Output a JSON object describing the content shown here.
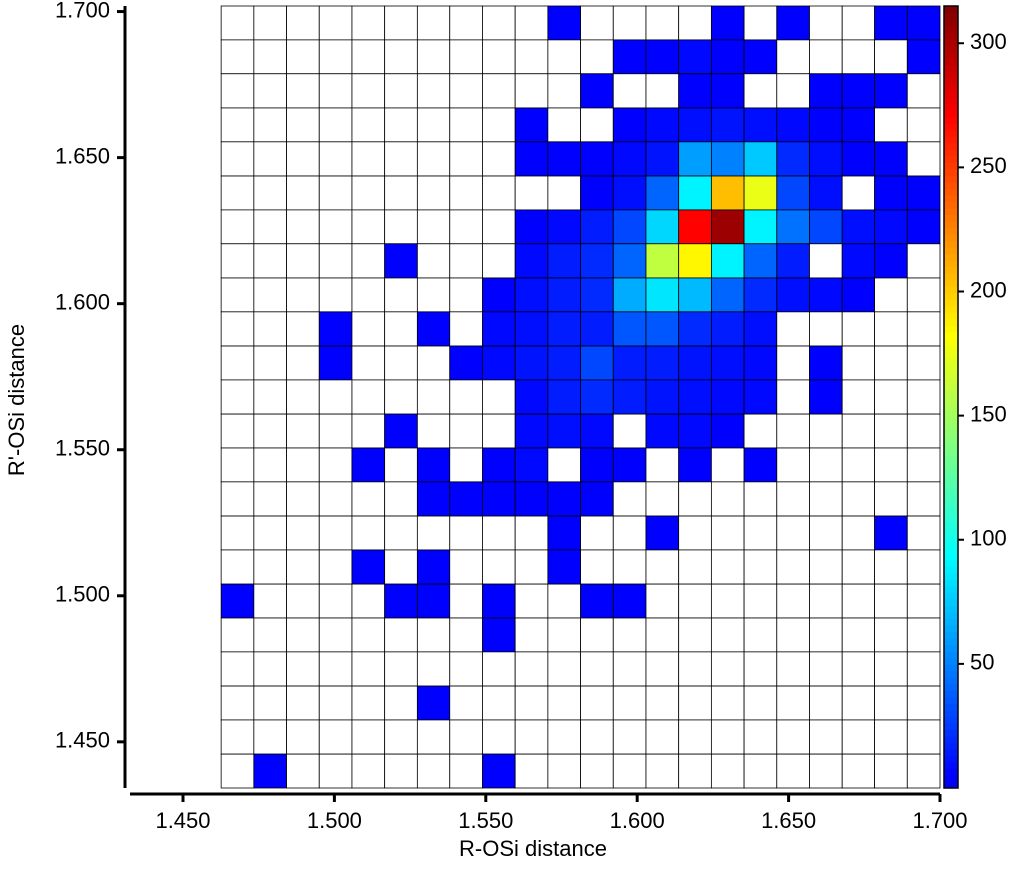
{
  "chart_data": {
    "type": "heatmap",
    "x_label": "R-OSi distance",
    "y_label": "R'-OSi distance",
    "xlim": [
      1.4325,
      1.7
    ],
    "ylim": [
      1.4342,
      1.7019
    ],
    "xticks": [
      {
        "value": 1.45,
        "label": "1.450"
      },
      {
        "value": 1.5,
        "label": "1.500"
      },
      {
        "value": 1.55,
        "label": "1.550"
      },
      {
        "value": 1.6,
        "label": "1.600"
      },
      {
        "value": 1.65,
        "label": "1.650"
      },
      {
        "value": 1.7,
        "label": "1.700"
      }
    ],
    "yticks": [
      {
        "value": 1.45,
        "label": "1.450"
      },
      {
        "value": 1.5,
        "label": "1.500"
      },
      {
        "value": 1.55,
        "label": "1.550"
      },
      {
        "value": 1.6,
        "label": "1.600"
      },
      {
        "value": 1.65,
        "label": "1.650"
      },
      {
        "value": 1.7,
        "label": "1.700"
      }
    ],
    "x_edges": [
      1.4626,
      1.4734,
      1.4842,
      1.495,
      1.5058,
      1.5166,
      1.5274,
      1.5381,
      1.5489,
      1.5597,
      1.5705,
      1.5813,
      1.5921,
      1.6029,
      1.6137,
      1.6245,
      1.6353,
      1.6461,
      1.6569,
      1.6677,
      1.6784,
      1.6892,
      1.7
    ],
    "y_edges": [
      1.7019,
      1.6903,
      1.6787,
      1.667,
      1.6554,
      1.6437,
      1.6321,
      1.6205,
      1.6088,
      1.5972,
      1.5855,
      1.5739,
      1.5622,
      1.5506,
      1.539,
      1.5273,
      1.5157,
      1.504,
      1.4924,
      1.4808,
      1.4691,
      1.4575,
      1.4458,
      1.4342
    ],
    "values": [
      [
        0,
        0,
        0,
        0,
        0,
        0,
        0,
        0,
        0,
        0,
        5,
        0,
        0,
        0,
        0,
        5,
        0,
        5,
        0,
        0,
        5,
        5
      ],
      [
        0,
        0,
        0,
        0,
        0,
        0,
        0,
        0,
        0,
        0,
        0,
        0,
        5,
        5,
        8,
        5,
        5,
        0,
        0,
        0,
        0,
        5
      ],
      [
        0,
        0,
        0,
        0,
        0,
        0,
        0,
        0,
        0,
        0,
        0,
        5,
        0,
        0,
        5,
        5,
        0,
        0,
        5,
        5,
        5,
        0
      ],
      [
        0,
        0,
        0,
        0,
        0,
        0,
        0,
        0,
        0,
        5,
        0,
        0,
        5,
        8,
        10,
        12,
        10,
        8,
        5,
        5,
        0,
        0
      ],
      [
        0,
        0,
        0,
        0,
        0,
        0,
        0,
        0,
        0,
        5,
        5,
        5,
        8,
        12,
        60,
        50,
        75,
        20,
        10,
        5,
        5,
        0
      ],
      [
        0,
        0,
        0,
        0,
        0,
        0,
        0,
        0,
        0,
        0,
        0,
        5,
        10,
        40,
        90,
        205,
        175,
        30,
        10,
        0,
        5,
        5
      ],
      [
        0,
        0,
        0,
        0,
        0,
        0,
        0,
        0,
        0,
        5,
        8,
        15,
        30,
        80,
        270,
        305,
        90,
        45,
        30,
        10,
        8,
        5
      ],
      [
        0,
        0,
        0,
        0,
        0,
        5,
        0,
        0,
        0,
        8,
        15,
        20,
        40,
        160,
        185,
        90,
        40,
        15,
        0,
        8,
        5,
        0
      ],
      [
        0,
        0,
        0,
        0,
        0,
        0,
        0,
        0,
        5,
        10,
        15,
        20,
        65,
        85,
        70,
        40,
        20,
        10,
        8,
        5,
        0,
        0
      ],
      [
        0,
        0,
        0,
        5,
        0,
        0,
        5,
        0,
        8,
        10,
        15,
        15,
        35,
        35,
        20,
        15,
        10,
        0,
        0,
        0,
        0,
        0
      ],
      [
        0,
        0,
        0,
        5,
        0,
        0,
        0,
        5,
        8,
        12,
        15,
        30,
        15,
        15,
        12,
        10,
        8,
        0,
        5,
        0,
        0,
        0
      ],
      [
        0,
        0,
        0,
        0,
        0,
        0,
        0,
        0,
        0,
        8,
        15,
        20,
        15,
        12,
        10,
        8,
        8,
        0,
        5,
        0,
        0,
        0
      ],
      [
        0,
        0,
        0,
        0,
        0,
        5,
        0,
        0,
        0,
        8,
        10,
        8,
        0,
        8,
        8,
        5,
        0,
        0,
        0,
        0,
        0,
        0
      ],
      [
        0,
        0,
        0,
        0,
        5,
        0,
        5,
        0,
        5,
        8,
        0,
        5,
        5,
        0,
        5,
        0,
        5,
        0,
        0,
        0,
        0,
        0
      ],
      [
        0,
        0,
        0,
        0,
        0,
        0,
        5,
        5,
        5,
        5,
        5,
        5,
        0,
        0,
        0,
        0,
        0,
        0,
        0,
        0,
        0,
        0
      ],
      [
        0,
        0,
        0,
        0,
        0,
        0,
        0,
        0,
        0,
        0,
        5,
        0,
        0,
        5,
        0,
        0,
        0,
        0,
        0,
        0,
        5,
        0
      ],
      [
        0,
        0,
        0,
        0,
        5,
        0,
        5,
        0,
        0,
        0,
        5,
        0,
        0,
        0,
        0,
        0,
        0,
        0,
        0,
        0,
        0,
        0
      ],
      [
        5,
        0,
        0,
        0,
        0,
        5,
        5,
        0,
        5,
        0,
        0,
        5,
        5,
        0,
        0,
        0,
        0,
        0,
        0,
        0,
        0,
        0
      ],
      [
        0,
        0,
        0,
        0,
        0,
        0,
        0,
        0,
        5,
        0,
        0,
        0,
        0,
        0,
        0,
        0,
        0,
        0,
        0,
        0,
        0,
        0
      ],
      [
        0,
        0,
        0,
        0,
        0,
        0,
        0,
        0,
        0,
        0,
        0,
        0,
        0,
        0,
        0,
        0,
        0,
        0,
        0,
        0,
        0,
        0
      ],
      [
        0,
        0,
        0,
        0,
        0,
        0,
        5,
        0,
        0,
        0,
        0,
        0,
        0,
        0,
        0,
        0,
        0,
        0,
        0,
        0,
        0,
        0
      ],
      [
        0,
        0,
        0,
        0,
        0,
        0,
        0,
        0,
        0,
        0,
        0,
        0,
        0,
        0,
        0,
        0,
        0,
        0,
        0,
        0,
        0,
        0
      ],
      [
        0,
        5,
        0,
        0,
        0,
        0,
        0,
        0,
        5,
        0,
        0,
        0,
        0,
        0,
        0,
        0,
        0,
        0,
        0,
        0,
        0,
        0
      ]
    ],
    "colormap": "jet",
    "zlim": [
      0,
      315
    ],
    "zticks": [
      50,
      100,
      150,
      200,
      250,
      300
    ]
  }
}
